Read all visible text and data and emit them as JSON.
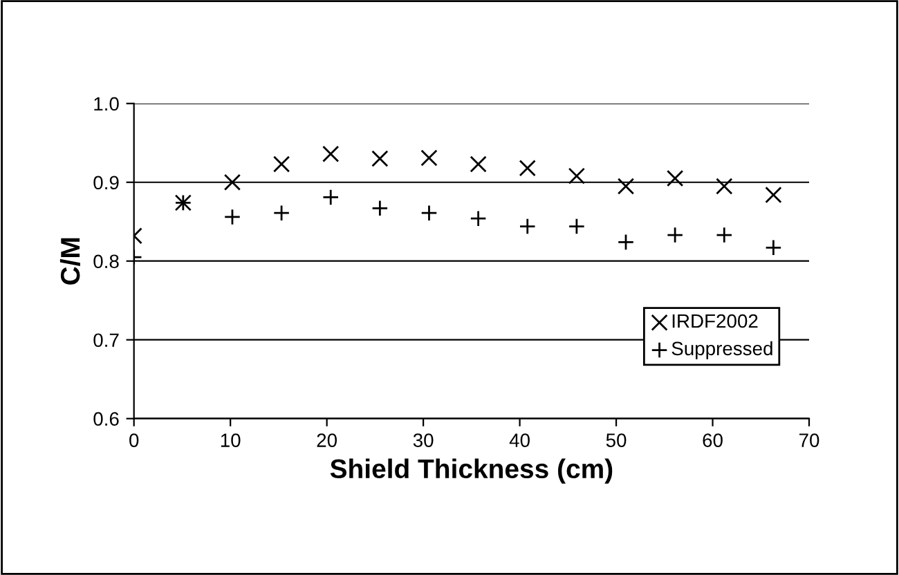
{
  "chart_data": {
    "type": "scatter",
    "xlabel": "Shield Thickness (cm)",
    "ylabel": "C/M",
    "x": [
      0,
      5.1,
      10.2,
      15.3,
      20.4,
      25.5,
      30.6,
      35.7,
      40.8,
      45.9,
      51.0,
      56.1,
      61.2,
      66.3
    ],
    "series": [
      {
        "name": "IRDF2002",
        "color": "#000000",
        "marker": "cross",
        "values": [
          0.832,
          0.874,
          0.9,
          0.923,
          0.936,
          0.93,
          0.931,
          0.923,
          0.918,
          0.908,
          0.895,
          0.905,
          0.895,
          0.884
        ]
      },
      {
        "name": "Suppressed",
        "color": "#000000",
        "marker": "plus",
        "values": [
          0.805,
          0.874,
          0.856,
          0.861,
          0.881,
          0.867,
          0.861,
          0.854,
          0.844,
          0.844,
          0.824,
          0.833,
          0.833,
          0.817
        ]
      }
    ],
    "xlim": [
      0,
      70
    ],
    "xticks": [
      0,
      10,
      20,
      30,
      40,
      50,
      60,
      70
    ],
    "ylim": [
      0.6,
      1.0
    ],
    "yticks": [
      {
        "value": 0.6,
        "label": "0.6"
      },
      {
        "value": 0.7,
        "label": "0.7"
      },
      {
        "value": 0.8,
        "label": "0.8"
      },
      {
        "value": 0.9,
        "label": "0.9"
      },
      {
        "value": 1.0,
        "label": "1.0"
      }
    ],
    "grid": "y",
    "legend": "bottom right"
  }
}
